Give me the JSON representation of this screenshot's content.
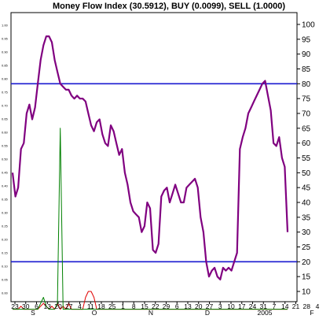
{
  "chart_data": {
    "type": "line",
    "title": "Money Flow Index (30.5912), BUY (0.0099), SELL (1.0000)",
    "x_tick_labels": [
      "23",
      "30",
      "6",
      "13",
      "20",
      "27",
      "4",
      "11",
      "18",
      "25",
      "1",
      "8",
      "15",
      "22",
      "29",
      "6",
      "13",
      "20",
      "27",
      "3",
      "10",
      "17",
      "24",
      "31",
      "7",
      "14",
      "21",
      "28",
      "4"
    ],
    "month_labels": [
      {
        "label": "S",
        "index": 0
      },
      {
        "label": "O",
        "index": 2
      },
      {
        "label": "N",
        "index": 4
      },
      {
        "label": "D",
        "index": 6
      },
      {
        "label": "2005",
        "index": 8
      },
      {
        "label": "F",
        "index": 9
      }
    ],
    "y_right": {
      "min": 10,
      "max": 100,
      "ticks": [
        10,
        15,
        20,
        25,
        30,
        35,
        40,
        45,
        50,
        55,
        60,
        65,
        70,
        75,
        80,
        85,
        90,
        95,
        100
      ]
    },
    "y_left": {
      "ticks": [
        "1.00",
        "0.95",
        "0.90",
        "0.85",
        "0.80",
        "0.75",
        "0.70",
        "0.65",
        "0.60",
        "0.55",
        "0.50",
        "0.45",
        "0.40",
        "0.35",
        "0.30",
        "0.25",
        "0.20",
        "0.15",
        "0.10",
        "0.05",
        "0.00"
      ]
    },
    "reference_lines": [
      {
        "value": 80,
        "color": "#1a1ad0"
      },
      {
        "value": 20,
        "color": "#1a1ad0"
      }
    ],
    "series": [
      {
        "color": "#800080",
        "values": [
          50,
          42,
          45,
          58,
          60,
          70,
          73,
          68,
          72,
          80,
          88,
          93,
          96,
          96,
          94,
          88,
          84,
          80,
          79,
          78,
          78,
          76,
          75,
          76,
          75,
          75,
          74,
          70,
          66,
          64,
          67,
          68,
          63,
          60,
          59,
          66,
          64,
          60,
          56,
          58,
          50,
          46,
          40,
          37,
          36,
          35,
          30,
          32,
          40,
          38,
          24,
          23,
          26,
          42,
          44,
          45,
          40,
          43,
          46,
          43,
          40,
          40,
          45,
          46,
          47,
          48,
          45,
          35,
          30,
          20,
          15,
          17,
          18,
          15,
          14,
          18,
          17,
          18,
          17,
          20,
          23,
          58,
          62,
          65,
          70,
          72,
          74,
          76,
          78,
          80,
          81,
          76,
          71,
          60,
          59,
          62,
          55,
          52,
          30
        ]
      },
      {
        "color": "#008000",
        "values": [
          4,
          4,
          4,
          4,
          4,
          4,
          4,
          4,
          4,
          4,
          6,
          8,
          5,
          4,
          4,
          4,
          6,
          65,
          4,
          4,
          4,
          4,
          4,
          4,
          4,
          4,
          4,
          4,
          4,
          4,
          4,
          4,
          4,
          4,
          4,
          4,
          4,
          4,
          4,
          4,
          4,
          4,
          4,
          4,
          4,
          4,
          4,
          4,
          4,
          4,
          4,
          4,
          4,
          4,
          4,
          4,
          4,
          4,
          4,
          4,
          4,
          4,
          4,
          4,
          4,
          4,
          4,
          4,
          4,
          4,
          4,
          4,
          4,
          4,
          4,
          4,
          4,
          4,
          4,
          4,
          4,
          4,
          4,
          4,
          4,
          4,
          4,
          4,
          4,
          4,
          4,
          4,
          4,
          4,
          4,
          4,
          4,
          4,
          4
        ]
      },
      {
        "color": "#e00000",
        "values": [
          4,
          4,
          4,
          5,
          4,
          4,
          4,
          4,
          4,
          4,
          5,
          6,
          5,
          4,
          5,
          4,
          6,
          4,
          5,
          4,
          6,
          4,
          4,
          4,
          4,
          4,
          8,
          10,
          10,
          8,
          4,
          4,
          4,
          4,
          4,
          4,
          4,
          4,
          4,
          4,
          4,
          4,
          4,
          4,
          4,
          4,
          4,
          4,
          4,
          4,
          4,
          4,
          4,
          4,
          4,
          4,
          4,
          4,
          4,
          4,
          4,
          4,
          4,
          4,
          4,
          4,
          4,
          4,
          4,
          4,
          4,
          4,
          4,
          4,
          4,
          4,
          4,
          4,
          4,
          4,
          4,
          4,
          4,
          4,
          4,
          4,
          4,
          4,
          4,
          4,
          4,
          4,
          4,
          4,
          4,
          4,
          4,
          4,
          4
        ]
      }
    ],
    "grid": false
  }
}
